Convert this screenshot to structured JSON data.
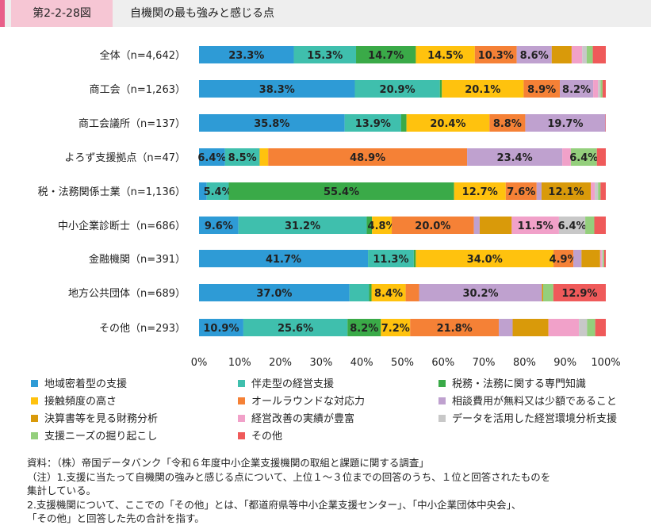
{
  "header": {
    "figure_no": "第2-2-28図",
    "title": "自機関の最も強みと感じる点"
  },
  "chart_data": {
    "type": "bar",
    "orientation": "horizontal",
    "stacked": true,
    "normalized": true,
    "xlim": [
      0,
      100
    ],
    "x_ticks": [
      "0%",
      "10%",
      "20%",
      "30%",
      "40%",
      "50%",
      "60%",
      "70%",
      "80%",
      "90%",
      "100%"
    ],
    "grid": false,
    "legend_position": "bottom",
    "categories": [
      "全体（n=4,642）",
      "商工会（n=1,263）",
      "商工会議所（n=137）",
      "よろず支援拠点（n=47）",
      "税・法務関係士業（n=1,136）",
      "中小企業診断士（n=686）",
      "金融機関（n=391）",
      "地方公共団体（n=689）",
      "その他（n=293）"
    ],
    "series": [
      {
        "name": "地域密着型の支援",
        "color": "#2e9bd6",
        "values": [
          23.3,
          38.3,
          35.8,
          6.4,
          1.9,
          9.6,
          41.7,
          37.0,
          10.9
        ],
        "labels": [
          "23.3%",
          "38.3%",
          "35.8%",
          "6.4%",
          "",
          "9.6%",
          "41.7%",
          "37.0%",
          "10.9%"
        ]
      },
      {
        "name": "伴走型の経営支援",
        "color": "#3fbfad",
        "values": [
          15.3,
          20.9,
          13.9,
          8.5,
          5.4,
          31.2,
          11.3,
          4.8,
          25.6
        ],
        "labels": [
          "15.3%",
          "20.9%",
          "13.9%",
          "8.5%",
          "5.4%",
          "31.2%",
          "11.3%",
          "",
          "25.6%"
        ]
      },
      {
        "name": "税務・法務に関する専門知識",
        "color": "#3aaa48",
        "values": [
          14.7,
          0.5,
          1.3,
          0.0,
          55.4,
          1.3,
          0.5,
          0.6,
          8.2
        ],
        "labels": [
          "14.7%",
          "",
          "",
          "",
          "55.4%",
          "",
          "",
          "",
          "8.2%"
        ]
      },
      {
        "name": "接触頻度の高さ",
        "color": "#ffc20e",
        "values": [
          14.5,
          20.1,
          20.4,
          2.1,
          12.7,
          4.8,
          34.0,
          8.4,
          7.2
        ],
        "labels": [
          "14.5%",
          "20.1%",
          "20.4%",
          "",
          "12.7%",
          "4.8%",
          "34.0%",
          "8.4%",
          "7.2%"
        ]
      },
      {
        "name": "オールラウンドな対応力",
        "color": "#f58136",
        "values": [
          10.3,
          8.9,
          8.8,
          48.9,
          7.6,
          20.0,
          4.9,
          3.3,
          21.8
        ],
        "labels": [
          "10.3%",
          "8.9%",
          "8.8%",
          "48.9%",
          "7.6%",
          "20.0%",
          "4.9%",
          "",
          "21.8%"
        ]
      },
      {
        "name": "相談費用が無料又は少額であること",
        "color": "#bfa1cf",
        "values": [
          8.6,
          8.2,
          19.7,
          23.4,
          1.2,
          1.4,
          2.0,
          30.2,
          3.4
        ],
        "labels": [
          "8.6%",
          "8.2%",
          "19.7%",
          "23.4%",
          "",
          "",
          "",
          "30.2%",
          ""
        ]
      },
      {
        "name": "決算書等を見る財務分析",
        "color": "#d99a0a",
        "values": [
          4.9,
          0.0,
          0.0,
          0.0,
          12.1,
          7.8,
          4.6,
          0.3,
          8.8
        ],
        "labels": [
          "",
          "",
          "",
          "",
          "12.1%",
          "",
          "",
          "",
          ""
        ]
      },
      {
        "name": "経営改善の実績が豊富",
        "color": "#f1a1c9",
        "values": [
          2.6,
          1.2,
          0.0,
          2.1,
          1.0,
          11.5,
          0.4,
          0.0,
          7.5
        ],
        "labels": [
          "",
          "",
          "",
          "",
          "",
          "11.5%",
          "",
          "",
          ""
        ]
      },
      {
        "name": "データを活用した経営環境分析支援",
        "color": "#c8c8c8",
        "values": [
          1.1,
          0.6,
          0.0,
          0.0,
          0.8,
          6.4,
          0.3,
          0.0,
          2.0
        ],
        "labels": [
          "",
          "",
          "",
          "",
          "",
          "6.4%",
          "",
          "",
          ""
        ]
      },
      {
        "name": "支援ニーズの掘り起こし",
        "color": "#94cf7c",
        "values": [
          1.5,
          0.5,
          0.0,
          6.4,
          0.6,
          2.2,
          0.3,
          2.5,
          2.0
        ],
        "labels": [
          "",
          "",
          "",
          "6.4%",
          "",
          "",
          "",
          "",
          ""
        ]
      },
      {
        "name": "その他",
        "color": "#ef5a5a",
        "values": [
          3.2,
          0.8,
          0.1,
          2.2,
          1.3,
          2.8,
          0.4,
          12.9,
          2.6
        ],
        "labels": [
          "",
          "",
          "",
          "",
          "",
          "",
          "",
          "12.9%",
          ""
        ]
      }
    ]
  },
  "notes": [
    "資料：（株）帝国データバンク「令和６年度中小企業支援機関の取組と課題に関する調査」",
    "（注）1.支援に当たって自機関の強みと感じる点について、上位１～３位までの回答のうち、１位と回答されたものを",
    "集計している。",
    "2.支援機関について、ここでの「その他」とは、「都道府県等中小企業支援センター」、「中小企業団体中央会」、",
    "「その他」と回答した先の合計を指す。"
  ]
}
